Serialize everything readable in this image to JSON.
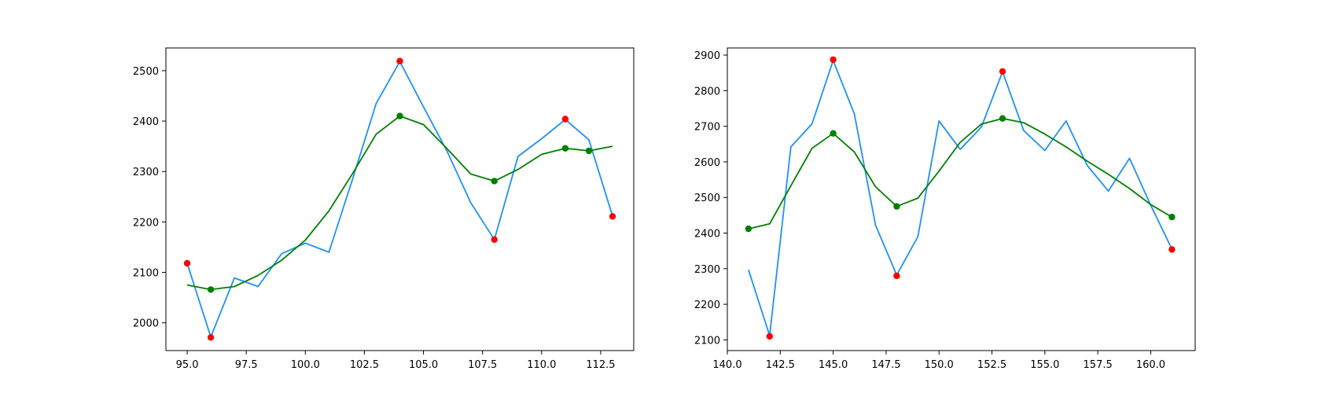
{
  "colors": {
    "raw_line": "#1e90ff",
    "smooth_line": "#008000",
    "extrema_marker": "#ff0000",
    "smooth_marker": "#008000"
  },
  "chart_data": [
    {
      "type": "line",
      "title": "",
      "xlabel": "",
      "ylabel": "",
      "grid": false,
      "xlim": [
        94.1,
        113.9
      ],
      "ylim": [
        1945,
        2545
      ],
      "x_ticks": [
        95,
        97.5,
        100,
        102.5,
        105,
        107.5,
        110,
        112.5
      ],
      "x_tick_labels": [
        "95.0",
        "97.5",
        "100.0",
        "102.5",
        "105.0",
        "107.5",
        "110.0",
        "112.5"
      ],
      "y_ticks": [
        2000,
        2100,
        2200,
        2300,
        2400,
        2500
      ],
      "y_tick_labels": [
        "2000",
        "2100",
        "2200",
        "2300",
        "2400",
        "2500"
      ],
      "series": [
        {
          "style": "line",
          "color": "#1e90ff",
          "x": [
            95,
            96,
            97,
            98,
            99,
            100,
            101,
            102,
            103,
            104,
            105,
            106,
            107,
            108,
            109,
            110,
            111,
            112,
            113
          ],
          "y": [
            2118,
            1972,
            2089,
            2072,
            2137,
            2158,
            2140,
            2285,
            2435,
            2518,
            2428,
            2340,
            2238,
            2165,
            2330,
            2365,
            2403,
            2363,
            2212
          ]
        },
        {
          "style": "line",
          "color": "#008000",
          "x": [
            95,
            96,
            97,
            98,
            99,
            100,
            101,
            102,
            103,
            104,
            105,
            106,
            107,
            108,
            109,
            110,
            111,
            112,
            113
          ],
          "y": [
            2075,
            2066,
            2072,
            2094,
            2124,
            2164,
            2222,
            2296,
            2374,
            2410,
            2393,
            2345,
            2295,
            2281,
            2304,
            2334,
            2346,
            2341,
            2350
          ]
        },
        {
          "style": "markers",
          "color": "#ff0000",
          "x": [
            95,
            96,
            104,
            108,
            111,
            113
          ],
          "y": [
            2118,
            1971,
            2519,
            2165,
            2404,
            2211
          ]
        },
        {
          "style": "markers",
          "color": "#008000",
          "x": [
            96,
            104,
            108,
            111,
            112
          ],
          "y": [
            2066,
            2410,
            2281,
            2346,
            2341
          ]
        }
      ]
    },
    {
      "type": "line",
      "title": "",
      "xlabel": "",
      "ylabel": "",
      "grid": false,
      "xlim": [
        140,
        162.1
      ],
      "ylim": [
        2070,
        2920
      ],
      "x_ticks": [
        140,
        142.5,
        145,
        147.5,
        150,
        152.5,
        155,
        157.5,
        160
      ],
      "x_tick_labels": [
        "140.0",
        "142.5",
        "145.0",
        "147.5",
        "150.0",
        "152.5",
        "155.0",
        "157.5",
        "160.0"
      ],
      "y_ticks": [
        2100,
        2200,
        2300,
        2400,
        2500,
        2600,
        2700,
        2800,
        2900
      ],
      "y_tick_labels": [
        "2100",
        "2200",
        "2300",
        "2400",
        "2500",
        "2600",
        "2700",
        "2800",
        "2900"
      ],
      "series": [
        {
          "style": "line",
          "color": "#1e90ff",
          "x": [
            141,
            142,
            143,
            144,
            145,
            146,
            147,
            148,
            149,
            150,
            151,
            152,
            153,
            154,
            155,
            156,
            157,
            158,
            159,
            160,
            161
          ],
          "y": [
            2297,
            2112,
            2642,
            2707,
            2885,
            2735,
            2422,
            2282,
            2390,
            2715,
            2635,
            2698,
            2853,
            2688,
            2632,
            2715,
            2590,
            2518,
            2610,
            2478,
            2355
          ]
        },
        {
          "style": "line",
          "color": "#008000",
          "x": [
            141,
            142,
            143,
            144,
            145,
            146,
            147,
            148,
            149,
            150,
            151,
            152,
            153,
            154,
            155,
            156,
            157,
            158,
            159,
            160,
            161
          ],
          "y": [
            2412,
            2426,
            2533,
            2638,
            2680,
            2628,
            2530,
            2475,
            2498,
            2574,
            2655,
            2706,
            2722,
            2710,
            2678,
            2642,
            2602,
            2565,
            2525,
            2480,
            2445
          ]
        },
        {
          "style": "markers",
          "color": "#ff0000",
          "x": [
            142,
            145,
            148,
            153,
            161
          ],
          "y": [
            2110,
            2887,
            2280,
            2854,
            2354
          ]
        },
        {
          "style": "markers",
          "color": "#008000",
          "x": [
            141,
            145,
            148,
            153,
            161
          ],
          "y": [
            2412,
            2680,
            2475,
            2722,
            2445
          ]
        }
      ]
    }
  ]
}
